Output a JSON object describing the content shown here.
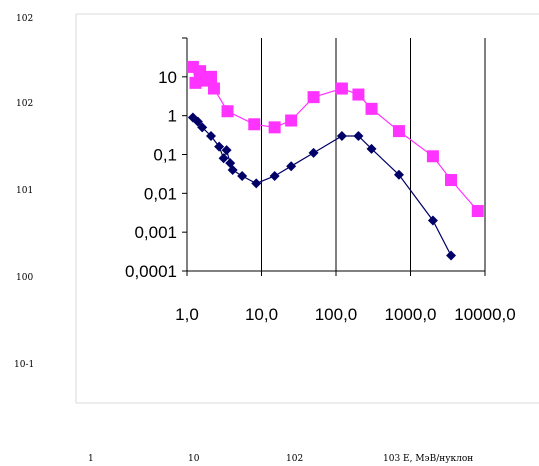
{
  "chart_data": {
    "type": "scatter",
    "x_scale": "log",
    "y_scale": "log",
    "xlim": [
      1,
      10000
    ],
    "ylim": [
      0.0001,
      100
    ],
    "grid": "vertical",
    "x_tick_labels": [
      "1,0",
      "10,0",
      "100,0",
      "1000,0",
      "10000,0"
    ],
    "y_tick_labels": [
      "0,0001",
      "0,001",
      "0,01",
      "0,1",
      "1",
      "10"
    ],
    "series": [
      {
        "color": "#ff33ff",
        "marker": "square",
        "x": [
          1.2,
          1.3,
          1.5,
          1.8,
          2.1,
          2.3,
          3.5,
          8,
          15,
          25,
          50,
          120,
          200,
          300,
          700,
          2000,
          3500,
          8000
        ],
        "y": [
          18,
          7,
          14,
          8,
          10,
          5,
          1.3,
          0.6,
          0.5,
          0.75,
          3,
          5,
          3.5,
          1.5,
          0.4,
          0.09,
          0.022,
          0.0035
        ]
      },
      {
        "color": "#000066",
        "marker": "diamond",
        "x": [
          1.2,
          1.4,
          1.6,
          2.1,
          2.7,
          3.1,
          3.4,
          3.8,
          4.1,
          5.5,
          8.5,
          15,
          25,
          50,
          120,
          200,
          300,
          700,
          2000,
          3500
        ],
        "y": [
          0.9,
          0.7,
          0.5,
          0.3,
          0.16,
          0.08,
          0.13,
          0.06,
          0.04,
          0.028,
          0.018,
          0.028,
          0.05,
          0.11,
          0.3,
          0.3,
          0.14,
          0.03,
          0.002,
          0.00025
        ]
      }
    ],
    "outer_y_labels": [
      "102",
      "102",
      "101",
      "100",
      "10-1"
    ],
    "outer_x_labels": [
      "1",
      "10",
      "102",
      "103 E, МэВ/нуклон"
    ]
  }
}
